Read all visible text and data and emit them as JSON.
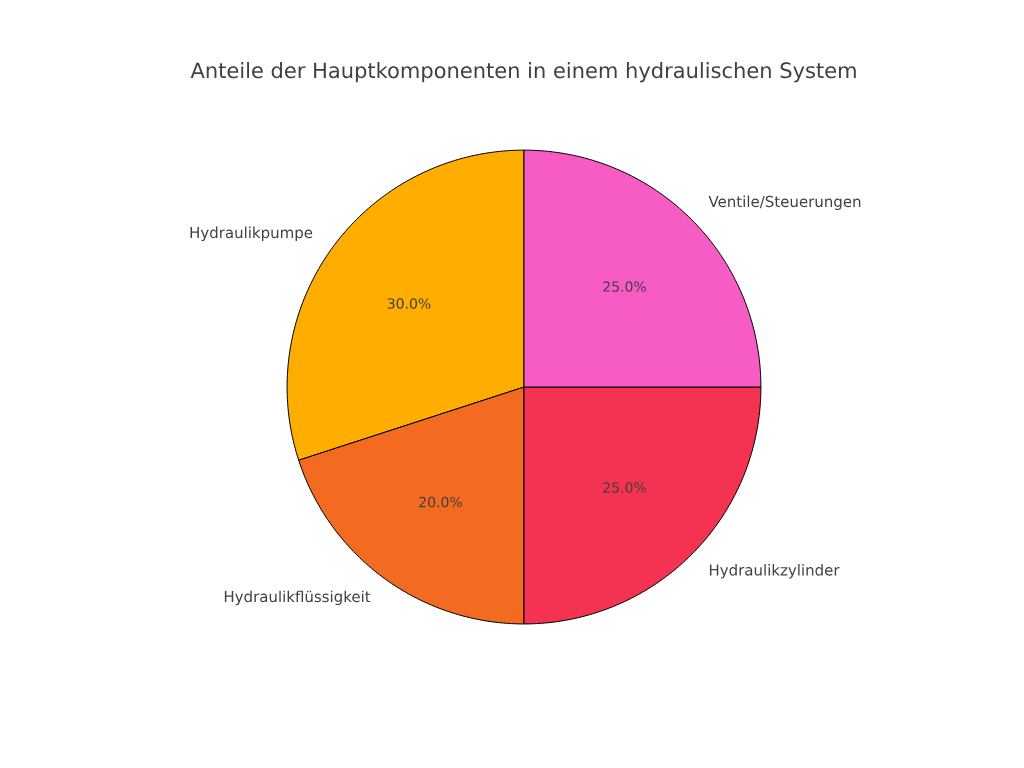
{
  "chart_data": {
    "type": "pie",
    "title": "Anteile der Hauptkomponenten in einem hydraulischen System",
    "categories": [
      "Hydraulikpumpe",
      "Hydraulikflüssigkeit",
      "Hydraulikzylinder",
      "Ventile/Steuerungen"
    ],
    "values": [
      30,
      20,
      25,
      25
    ],
    "value_labels": [
      "30.0%",
      "20.0%",
      "25.0%",
      "25.0%"
    ],
    "colors": [
      "#ffad00",
      "#f26b21",
      "#f43353",
      "#f75bc4"
    ]
  }
}
